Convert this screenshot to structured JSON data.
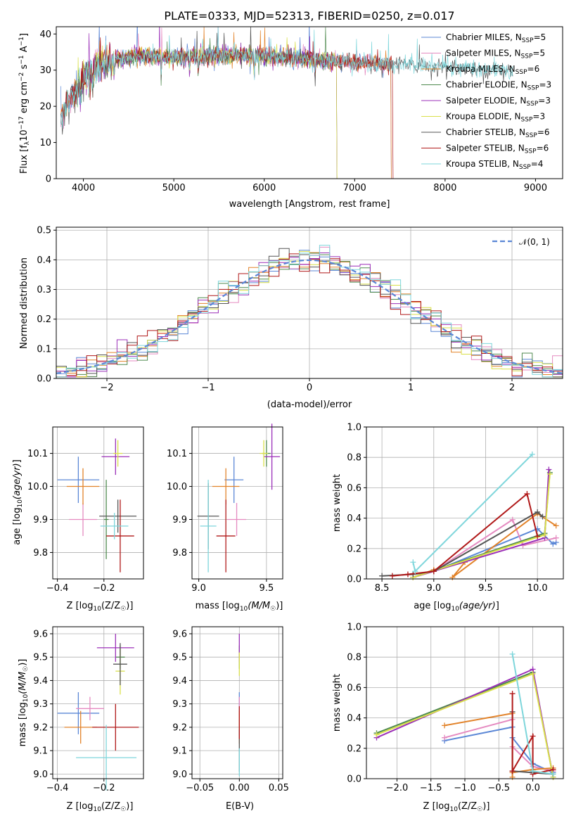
{
  "colors": {
    "chabrier_miles": "#5b87d6",
    "salpeter_miles": "#e58ac0",
    "kroupa_miles": "#e2832a",
    "chabrier_elodie": "#4f8a4f",
    "salpeter_elodie": "#9b2fb8",
    "kroupa_elodie": "#d9e04a",
    "chabrier_stelib": "#555555",
    "salpeter_stelib": "#b01818",
    "kroupa_stelib": "#7ed6db",
    "normal": "#5b87d6",
    "grid": "#b0b0b0"
  },
  "chart_data": [
    {
      "type": "line",
      "panel": "spectrum",
      "title": "PLATE=0333, MJD=52313, FIBERID=0250, z=0.017",
      "xlabel": "wavelength [Angstrom, rest frame]",
      "ylabel": "Flux [f_λ 10^-17 erg cm^-2 s^-1 A^-1]",
      "xlim": [
        3700,
        9300
      ],
      "ylim": [
        0,
        42
      ],
      "xticks": [
        4000,
        5000,
        6000,
        7000,
        8000,
        9000
      ],
      "yticks": [
        0,
        10,
        20,
        30,
        40
      ],
      "grid": false,
      "legend_position": "top-right",
      "series": [
        {
          "name": "Chabrier MILES, N_SSP=5",
          "color_key": "chabrier_miles",
          "x_range": [
            3750,
            7400
          ]
        },
        {
          "name": "Salpeter MILES, N_SSP=5",
          "color_key": "salpeter_miles",
          "x_range": [
            3750,
            7400
          ]
        },
        {
          "name": "Kroupa MILES, N_SSP=6",
          "color_key": "kroupa_miles",
          "x_range": [
            3750,
            7400
          ]
        },
        {
          "name": "Chabrier ELODIE, N_SSP=3",
          "color_key": "chabrier_elodie",
          "x_range": [
            3900,
            6800
          ]
        },
        {
          "name": "Salpeter ELODIE, N_SSP=3",
          "color_key": "salpeter_elodie",
          "x_range": [
            3900,
            6800
          ]
        },
        {
          "name": "Kroupa ELODIE, N_SSP=3",
          "color_key": "kroupa_elodie",
          "x_range": [
            3900,
            6800
          ]
        },
        {
          "name": "Chabrier STELIB, N_SSP=6",
          "color_key": "chabrier_stelib",
          "x_range": [
            3750,
            8750
          ]
        },
        {
          "name": "Salpeter STELIB, N_SSP=6",
          "color_key": "salpeter_stelib",
          "x_range": [
            3750,
            7420
          ]
        },
        {
          "name": "Kroupa STELIB, N_SSP=4",
          "color_key": "kroupa_stelib",
          "x_range": [
            3750,
            8750
          ]
        }
      ],
      "continuum": [
        [
          3750,
          17
        ],
        [
          3850,
          22
        ],
        [
          3950,
          26
        ],
        [
          4050,
          29
        ],
        [
          4200,
          32
        ],
        [
          4400,
          33
        ],
        [
          4600,
          34
        ],
        [
          5000,
          33.5
        ],
        [
          5500,
          34
        ],
        [
          6000,
          34
        ],
        [
          6500,
          33
        ],
        [
          7000,
          32
        ],
        [
          7500,
          31.5
        ],
        [
          8000,
          31
        ],
        [
          8500,
          30
        ],
        [
          8750,
          29.5
        ]
      ]
    },
    {
      "type": "line",
      "panel": "residuals",
      "xlabel": "(data-model)/error",
      "ylabel": "Normed distribution",
      "xlim": [
        -2.5,
        2.5
      ],
      "ylim": [
        0,
        0.51
      ],
      "xticks": [
        -2,
        -1,
        0,
        1,
        2
      ],
      "yticks": [
        0.0,
        0.1,
        0.2,
        0.3,
        0.4,
        0.5
      ],
      "grid": true,
      "legend_position": "top-right",
      "legend": [
        "𝒩(0, 1)"
      ],
      "normal": {
        "mean": 0,
        "sigma": 1,
        "style": "dashed"
      },
      "histograms": {
        "bin_width": 0.1,
        "range": [
          -2.5,
          2.5
        ],
        "color_keys": [
          "chabrier_miles",
          "salpeter_miles",
          "kroupa_miles",
          "chabrier_elodie",
          "salpeter_elodie",
          "kroupa_elodie",
          "chabrier_stelib",
          "salpeter_stelib",
          "kroupa_stelib"
        ]
      }
    },
    {
      "type": "scatter",
      "panel": "Z-age",
      "xlabel": "Z [log10(Z/Z☉)]",
      "ylabel": "age [log10(age/yr)]",
      "xlim": [
        -0.42,
        -0.03
      ],
      "ylim": [
        9.72,
        10.18
      ],
      "xticks": [
        -0.4,
        -0.2
      ],
      "yticks": [
        9.8,
        9.9,
        10.0,
        10.1
      ],
      "grid": true,
      "points": [
        {
          "color_key": "chabrier_miles",
          "x": -0.31,
          "y": 10.02,
          "xerr": 0.09,
          "yerr": 0.07
        },
        {
          "color_key": "salpeter_miles",
          "x": -0.29,
          "y": 9.9,
          "xerr": 0.06,
          "yerr": 0.05
        },
        {
          "color_key": "kroupa_miles",
          "x": -0.29,
          "y": 10.0,
          "xerr": 0.07,
          "yerr": 0.055
        },
        {
          "color_key": "chabrier_elodie",
          "x": -0.19,
          "y": 9.9,
          "xerr": 0.01,
          "yerr": 0.12
        },
        {
          "color_key": "salpeter_elodie",
          "x": -0.15,
          "y": 10.09,
          "xerr": 0.06,
          "yerr": 0.055
        },
        {
          "color_key": "kroupa_elodie",
          "x": -0.14,
          "y": 10.1,
          "xerr": 0.02,
          "yerr": 0.04
        },
        {
          "color_key": "chabrier_stelib",
          "x": -0.14,
          "y": 9.91,
          "xerr": 0.08,
          "yerr": 0.05
        },
        {
          "color_key": "salpeter_stelib",
          "x": -0.13,
          "y": 9.85,
          "xerr": 0.06,
          "yerr": 0.11
        },
        {
          "color_key": "kroupa_stelib",
          "x": -0.155,
          "y": 9.88,
          "xerr": 0.06,
          "yerr": 0.04
        }
      ]
    },
    {
      "type": "scatter",
      "panel": "mass-age",
      "xlabel": "mass [log10(M/M☉)]",
      "ylim": [
        9.72,
        10.18
      ],
      "xlim": [
        8.95,
        9.62
      ],
      "xticks": [
        9.0,
        9.5
      ],
      "yticks": [
        9.8,
        9.9,
        10.0,
        10.1
      ],
      "grid": true,
      "points": [
        {
          "color_key": "chabrier_miles",
          "x": 9.26,
          "y": 10.02,
          "xerr": 0.07,
          "yerr": 0.07
        },
        {
          "color_key": "salpeter_miles",
          "x": 9.28,
          "y": 9.9,
          "xerr": 0.07,
          "yerr": 0.05
        },
        {
          "color_key": "kroupa_miles",
          "x": 9.2,
          "y": 10.0,
          "xerr": 0.1,
          "yerr": 0.055
        },
        {
          "color_key": "chabrier_elodie",
          "x": 9.5,
          "y": 10.1,
          "xerr": 0.03,
          "yerr": 0.04
        },
        {
          "color_key": "salpeter_elodie",
          "x": 9.54,
          "y": 10.09,
          "xerr": 0.06,
          "yerr": 0.1
        },
        {
          "color_key": "kroupa_elodie",
          "x": 9.48,
          "y": 10.1,
          "xerr": 0.03,
          "yerr": 0.04
        },
        {
          "color_key": "chabrier_stelib",
          "x": 9.07,
          "y": 9.91,
          "xerr": 0.08,
          "yerr": 0.1
        },
        {
          "color_key": "salpeter_stelib",
          "x": 9.2,
          "y": 9.85,
          "xerr": 0.07,
          "yerr": 0.11
        },
        {
          "color_key": "kroupa_stelib",
          "x": 9.07,
          "y": 9.88,
          "xerr": 0.06,
          "yerr": 0.14
        }
      ]
    },
    {
      "type": "line",
      "panel": "age-weight",
      "xlabel": "age  [log10(age/yr)]",
      "ylabel": "mass weight",
      "xlim": [
        8.35,
        10.25
      ],
      "ylim": [
        0,
        1
      ],
      "xticks": [
        8.5,
        9.0,
        9.5,
        10.0
      ],
      "yticks": [
        0.0,
        0.2,
        0.4,
        0.6,
        0.8,
        1.0
      ],
      "grid": true,
      "series": [
        {
          "color_key": "chabrier_miles",
          "points": [
            [
              8.8,
              0.01
            ],
            [
              9.0,
              0.05
            ],
            [
              10.0,
              0.33
            ],
            [
              10.15,
              0.23
            ],
            [
              10.18,
              0.24
            ]
          ]
        },
        {
          "color_key": "salpeter_miles",
          "points": [
            [
              8.8,
              0.01
            ],
            [
              9.0,
              0.05
            ],
            [
              9.76,
              0.39
            ],
            [
              9.86,
              0.22
            ],
            [
              10.18,
              0.27
            ]
          ]
        },
        {
          "color_key": "kroupa_miles",
          "points": [
            [
              8.8,
              0.01
            ],
            [
              9.0,
              0.06
            ],
            [
              9.3,
              0.11
            ],
            [
              9.18,
              0.01
            ],
            [
              10.0,
              0.43
            ],
            [
              10.18,
              0.35
            ]
          ]
        },
        {
          "color_key": "chabrier_elodie",
          "points": [
            [
              8.8,
              0.01
            ],
            [
              10.07,
              0.3
            ],
            [
              10.12,
              0.7
            ]
          ]
        },
        {
          "color_key": "salpeter_elodie",
          "points": [
            [
              8.8,
              0.01
            ],
            [
              10.07,
              0.27
            ],
            [
              10.11,
              0.72
            ]
          ]
        },
        {
          "color_key": "kroupa_elodie",
          "points": [
            [
              8.8,
              0.01
            ],
            [
              10.07,
              0.29
            ],
            [
              10.12,
              0.69
            ]
          ]
        },
        {
          "color_key": "chabrier_stelib",
          "points": [
            [
              8.5,
              0.02
            ],
            [
              8.8,
              0.03
            ],
            [
              9.0,
              0.05
            ],
            [
              10.0,
              0.44
            ],
            [
              10.05,
              0.41
            ]
          ]
        },
        {
          "color_key": "salpeter_stelib",
          "points": [
            [
              8.6,
              0.02
            ],
            [
              8.75,
              0.03
            ],
            [
              9.0,
              0.05
            ],
            [
              9.9,
              0.56
            ],
            [
              10.0,
              0.28
            ]
          ]
        },
        {
          "color_key": "kroupa_stelib",
          "points": [
            [
              8.8,
              0.11
            ],
            [
              8.82,
              0.05
            ],
            [
              9.95,
              0.82
            ]
          ]
        }
      ]
    },
    {
      "type": "scatter",
      "panel": "Z-mass",
      "xlabel": "Z [log10(Z/Z☉)]",
      "ylabel": "mass [log10(M/M☉)]",
      "xlim": [
        -0.42,
        -0.03
      ],
      "ylim": [
        8.98,
        9.63
      ],
      "xticks": [
        -0.4,
        -0.2
      ],
      "yticks": [
        9.0,
        9.1,
        9.2,
        9.3,
        9.4,
        9.5,
        9.6
      ],
      "grid": true,
      "points": [
        {
          "color_key": "chabrier_miles",
          "x": -0.31,
          "y": 9.26,
          "xerr": 0.09,
          "yerr": 0.09
        },
        {
          "color_key": "salpeter_miles",
          "x": -0.26,
          "y": 9.28,
          "xerr": 0.06,
          "yerr": 0.05
        },
        {
          "color_key": "kroupa_miles",
          "x": -0.3,
          "y": 9.2,
          "xerr": 0.07,
          "yerr": 0.07
        },
        {
          "color_key": "chabrier_elodie",
          "x": -0.13,
          "y": 9.5,
          "xerr": 0.02,
          "yerr": 0.05
        },
        {
          "color_key": "salpeter_elodie",
          "x": -0.15,
          "y": 9.54,
          "xerr": 0.08,
          "yerr": 0.06
        },
        {
          "color_key": "kroupa_elodie",
          "x": -0.13,
          "y": 9.44,
          "xerr": 0.02,
          "yerr": 0.1
        },
        {
          "color_key": "chabrier_stelib",
          "x": -0.13,
          "y": 9.47,
          "xerr": 0.03,
          "yerr": 0.09
        },
        {
          "color_key": "salpeter_stelib",
          "x": -0.15,
          "y": 9.2,
          "xerr": 0.1,
          "yerr": 0.1
        },
        {
          "color_key": "kroupa_stelib",
          "x": -0.19,
          "y": 9.07,
          "xerr": 0.13,
          "yerr": 0.14
        }
      ]
    },
    {
      "type": "scatter",
      "panel": "ebv-mass",
      "xlabel": "E(B-V)",
      "xlim": [
        -0.06,
        0.055
      ],
      "ylim": [
        8.98,
        9.63
      ],
      "xticks": [
        -0.05,
        0.0,
        0.05
      ],
      "yticks": [
        9.0,
        9.1,
        9.2,
        9.3,
        9.4,
        9.5,
        9.6
      ],
      "grid": true,
      "points": [
        {
          "color_key": "chabrier_miles",
          "x": 0.0,
          "y": 9.26,
          "xerr": 0.0,
          "yerr": 0.09
        },
        {
          "color_key": "salpeter_miles",
          "x": 0.0,
          "y": 9.28,
          "xerr": 0.0,
          "yerr": 0.05
        },
        {
          "color_key": "kroupa_miles",
          "x": 0.0,
          "y": 9.2,
          "xerr": 0.0,
          "yerr": 0.07
        },
        {
          "color_key": "chabrier_elodie",
          "x": 0.0,
          "y": 9.5,
          "xerr": 0.0,
          "yerr": 0.05
        },
        {
          "color_key": "salpeter_elodie",
          "x": 0.0,
          "y": 9.54,
          "xerr": 0.0,
          "yerr": 0.06
        },
        {
          "color_key": "kroupa_elodie",
          "x": 0.0,
          "y": 9.47,
          "xerr": 0.0,
          "yerr": 0.05
        },
        {
          "color_key": "chabrier_stelib",
          "x": 0.0,
          "y": 9.1,
          "xerr": 0.0,
          "yerr": 0.09
        },
        {
          "color_key": "salpeter_stelib",
          "x": 0.0,
          "y": 9.22,
          "xerr": 0.0,
          "yerr": 0.07
        },
        {
          "color_key": "kroupa_stelib",
          "x": 0.0,
          "y": 9.05,
          "xerr": 0.0,
          "yerr": 0.06
        }
      ]
    },
    {
      "type": "line",
      "panel": "Z-weight",
      "xlabel": "Z [log10(Z/Z☉)]",
      "ylabel": "mass weight",
      "xlim": [
        -2.45,
        0.45
      ],
      "ylim": [
        0,
        1
      ],
      "xticks": [
        -2.0,
        -1.5,
        -1.0,
        -0.5,
        0.0
      ],
      "yticks": [
        0.0,
        0.2,
        0.4,
        0.6,
        0.8,
        1.0
      ],
      "grid": true,
      "series": [
        {
          "color_key": "chabrier_miles",
          "points": [
            [
              -1.3,
              0.25
            ],
            [
              -0.3,
              0.34
            ],
            [
              -0.3,
              0.27
            ],
            [
              0.0,
              0.1
            ],
            [
              0.3,
              0.04
            ]
          ]
        },
        {
          "color_key": "salpeter_miles",
          "points": [
            [
              -1.3,
              0.27
            ],
            [
              -0.3,
              0.39
            ],
            [
              -0.3,
              0.21
            ],
            [
              0.0,
              0.08
            ],
            [
              0.3,
              0.05
            ]
          ]
        },
        {
          "color_key": "kroupa_miles",
          "points": [
            [
              -1.3,
              0.35
            ],
            [
              -0.3,
              0.43
            ],
            [
              -0.3,
              0.01
            ],
            [
              -0.3,
              0.04
            ],
            [
              0.0,
              0.06
            ],
            [
              0.3,
              0.07
            ]
          ]
        },
        {
          "color_key": "chabrier_elodie",
          "points": [
            [
              -2.3,
              0.3
            ],
            [
              0.0,
              0.7
            ],
            [
              0.3,
              0.01
            ]
          ]
        },
        {
          "color_key": "salpeter_elodie",
          "points": [
            [
              -2.3,
              0.27
            ],
            [
              0.0,
              0.72
            ],
            [
              0.3,
              0.01
            ]
          ]
        },
        {
          "color_key": "kroupa_elodie",
          "points": [
            [
              -2.3,
              0.29
            ],
            [
              0.0,
              0.69
            ],
            [
              0.3,
              0.01
            ]
          ]
        },
        {
          "color_key": "chabrier_stelib",
          "points": [
            [
              -0.3,
              0.44
            ],
            [
              -0.3,
              0.05
            ],
            [
              0.0,
              0.04
            ],
            [
              0.3,
              0.03
            ]
          ]
        },
        {
          "color_key": "salpeter_stelib",
          "points": [
            [
              -0.3,
              0.56
            ],
            [
              -0.3,
              0.05
            ],
            [
              0.0,
              0.28
            ],
            [
              0.0,
              0.03
            ],
            [
              0.3,
              0.06
            ]
          ]
        },
        {
          "color_key": "kroupa_stelib",
          "points": [
            [
              -0.3,
              0.82
            ],
            [
              0.0,
              0.05
            ],
            [
              0.3,
              0.03
            ]
          ]
        }
      ]
    }
  ]
}
